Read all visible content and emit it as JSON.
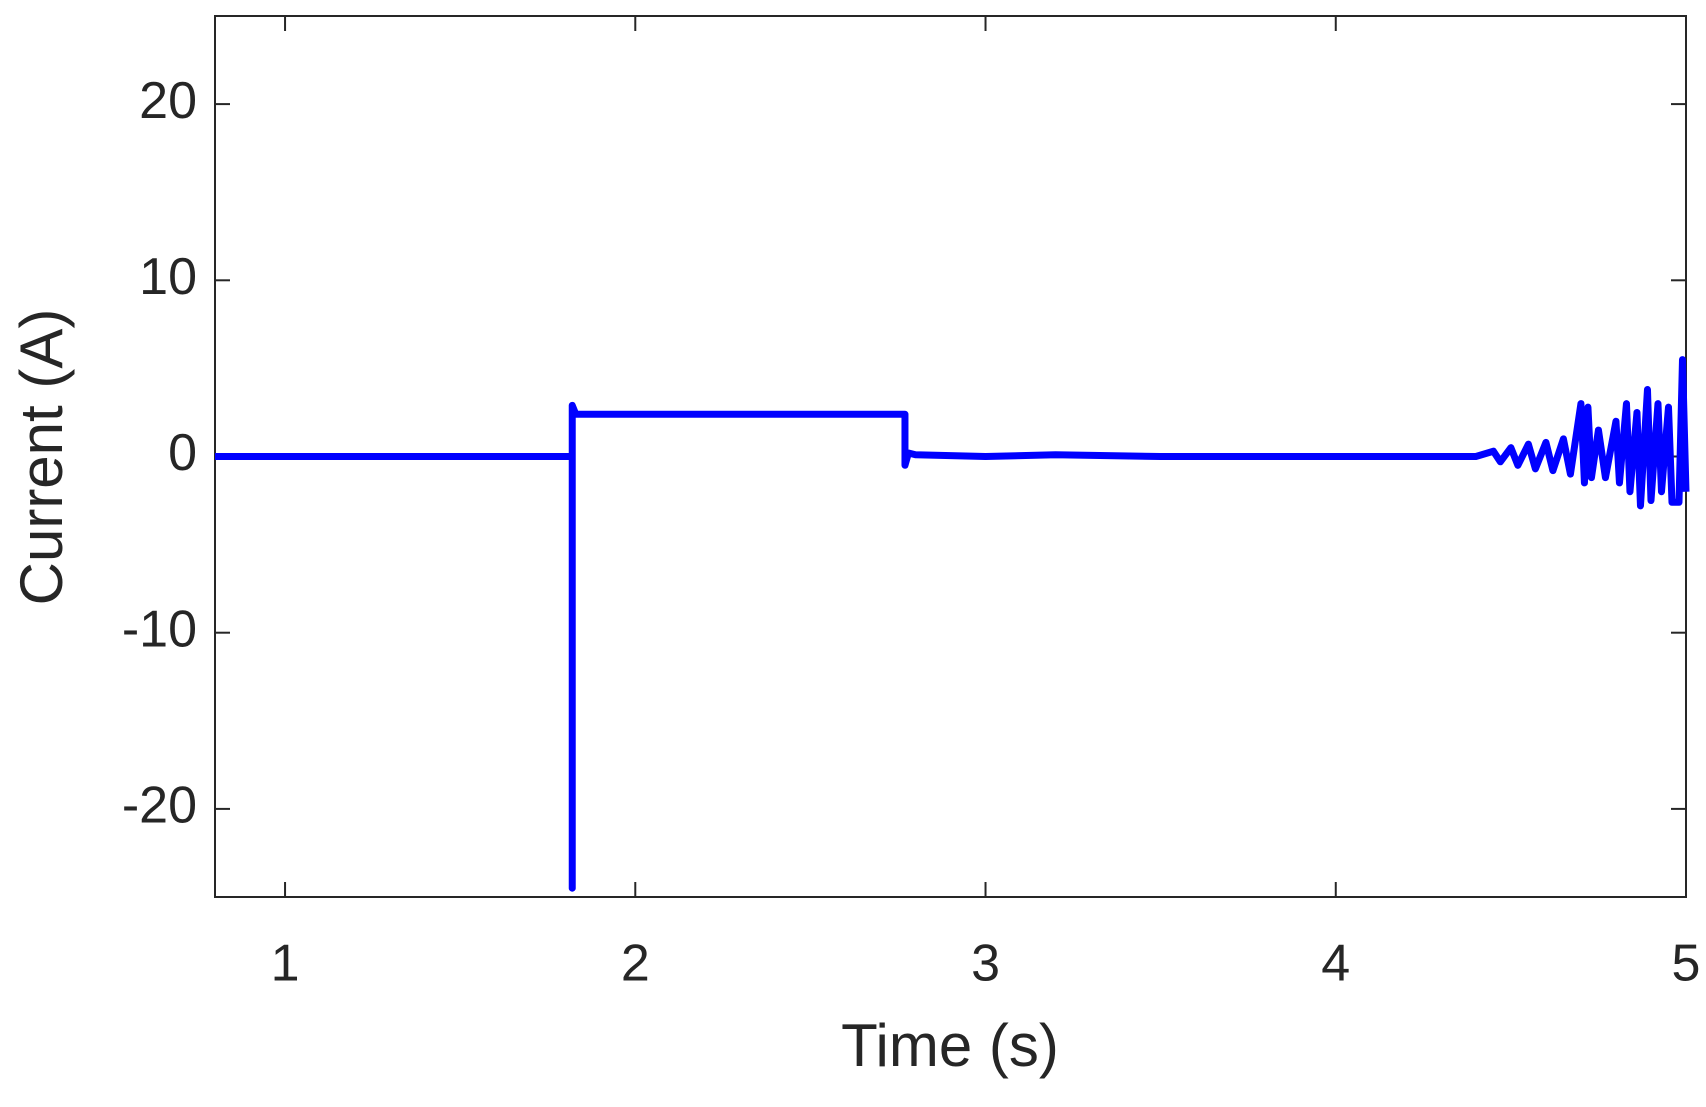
{
  "chart_data": {
    "type": "line",
    "x_label": "Time (s)",
    "y_label": "Current (A)",
    "series": [
      {
        "name": "Current",
        "color": "#0000ff",
        "x": [
          0.8,
          1.82,
          1.82,
          1.82,
          1.83,
          2.77,
          2.77,
          2.78,
          2.8,
          3.0,
          3.2,
          3.5,
          4.0,
          4.4,
          4.45,
          4.47,
          4.5,
          4.52,
          4.55,
          4.57,
          4.6,
          4.62,
          4.65,
          4.67,
          4.7,
          4.71,
          4.72,
          4.73,
          4.75,
          4.77,
          4.8,
          4.81,
          4.83,
          4.84,
          4.86,
          4.87,
          4.89,
          4.9,
          4.92,
          4.93,
          4.95,
          4.96,
          4.98,
          4.99,
          5.0
        ],
        "values": [
          0,
          0,
          -24.5,
          2.9,
          2.4,
          2.4,
          -0.5,
          0.2,
          0.1,
          0,
          0.1,
          0,
          0,
          0,
          0.3,
          -0.3,
          0.5,
          -0.5,
          0.7,
          -0.7,
          0.8,
          -0.8,
          1,
          -1,
          3,
          -1.5,
          2.8,
          -1.2,
          1.5,
          -1.2,
          2,
          -1.5,
          3,
          -2,
          2.5,
          -2.8,
          3.8,
          -2.5,
          3,
          -2,
          2.8,
          -2.6,
          -2.6,
          5.5,
          -2
        ]
      }
    ],
    "xlim": [
      0.8,
      5
    ],
    "ylim": [
      -25,
      25
    ],
    "xticks": [
      1,
      2,
      3,
      4,
      5
    ],
    "yticks": [
      -20,
      -10,
      0,
      10,
      20
    ],
    "grid": false
  }
}
